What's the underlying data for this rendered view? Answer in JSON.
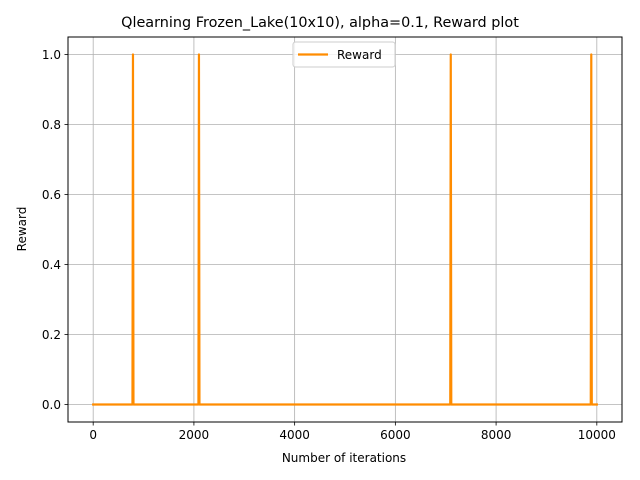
{
  "chart_data": {
    "type": "line",
    "title": "Qlearning Frozen_Lake(10x10),  alpha=0.1, Reward plot",
    "xlabel": "Number of iterations",
    "ylabel": "Reward",
    "xlim": [
      -500,
      10500
    ],
    "ylim": [
      -0.05,
      1.05
    ],
    "xticks": [
      0,
      2000,
      4000,
      6000,
      8000,
      10000
    ],
    "xtick_labels": [
      "0",
      "2000",
      "4000",
      "6000",
      "8000",
      "10000"
    ],
    "yticks": [
      0.0,
      0.2,
      0.4,
      0.6,
      0.8,
      1.0
    ],
    "ytick_labels": [
      "0.0",
      "0.2",
      "0.4",
      "0.6",
      "0.8",
      "1.0"
    ],
    "grid": true,
    "legend_position": "upper center",
    "series": [
      {
        "name": "Reward",
        "color": "#ff8c00",
        "x": [
          0,
          780,
          790,
          800,
          2090,
          2100,
          2110,
          7090,
          7100,
          7110,
          9880,
          9890,
          9900,
          10000
        ],
        "y": [
          0,
          0,
          1,
          0,
          0,
          1,
          0,
          0,
          1,
          0,
          0,
          1,
          0,
          0
        ]
      }
    ]
  }
}
